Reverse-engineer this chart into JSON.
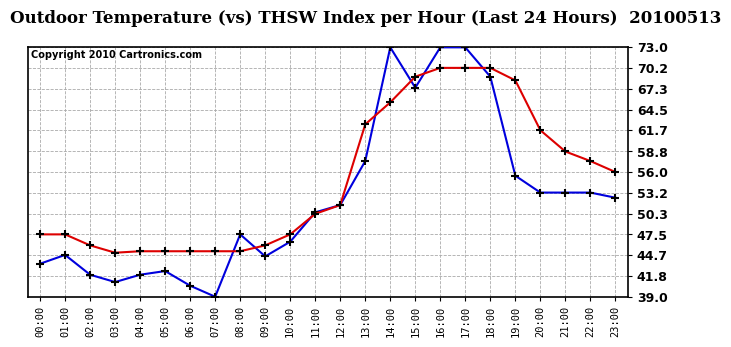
{
  "title": "Outdoor Temperature (vs) THSW Index per Hour (Last 24 Hours)  20100513",
  "copyright": "Copyright 2010 Cartronics.com",
  "x_labels": [
    "00:00",
    "01:00",
    "02:00",
    "03:00",
    "04:00",
    "05:00",
    "06:00",
    "07:00",
    "08:00",
    "09:00",
    "10:00",
    "11:00",
    "12:00",
    "13:00",
    "14:00",
    "15:00",
    "16:00",
    "17:00",
    "18:00",
    "19:00",
    "20:00",
    "21:00",
    "22:00",
    "23:00"
  ],
  "temp_blue": [
    43.5,
    44.7,
    42.0,
    41.0,
    42.0,
    42.5,
    40.5,
    39.0,
    47.5,
    44.5,
    46.5,
    50.5,
    51.5,
    57.5,
    73.0,
    67.5,
    73.0,
    73.0,
    69.0,
    55.5,
    53.2,
    53.2,
    53.2,
    52.5
  ],
  "thsw_red": [
    47.5,
    47.5,
    46.0,
    45.0,
    45.2,
    45.2,
    45.2,
    45.2,
    45.2,
    46.0,
    47.5,
    50.3,
    51.5,
    62.5,
    65.5,
    69.0,
    70.2,
    70.2,
    70.2,
    68.5,
    61.7,
    58.8,
    57.5,
    56.0
  ],
  "y_ticks": [
    39.0,
    41.8,
    44.7,
    47.5,
    50.3,
    53.2,
    56.0,
    58.8,
    61.7,
    64.5,
    67.3,
    70.2,
    73.0
  ],
  "y_min": 39.0,
  "y_max": 73.0,
  "bg_color": "#ffffff",
  "plot_bg_color": "#ffffff",
  "grid_color": "#aaaaaa",
  "blue_color": "#0000dd",
  "red_color": "#dd0000",
  "title_color": "#000000",
  "copyright_color": "#000000",
  "title_fontsize": 12,
  "copyright_fontsize": 7,
  "tick_fontsize": 9,
  "xtick_fontsize": 7.5
}
